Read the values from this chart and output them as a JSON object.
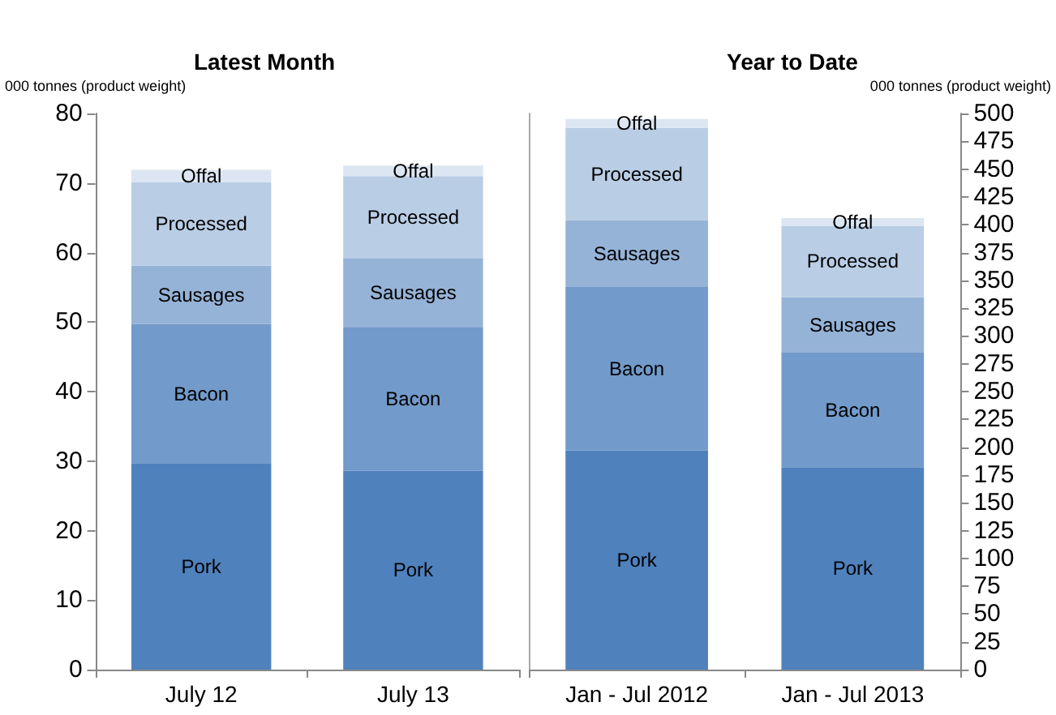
{
  "chart_data": [
    {
      "type": "bar",
      "title": "Latest Month",
      "ylabel": "000 tonnes (product weight)",
      "categories": [
        "July 12",
        "July 13"
      ],
      "stacked": true,
      "legend": false,
      "grid": false,
      "ylim": [
        0,
        80
      ],
      "yticks": [
        0,
        10,
        20,
        30,
        40,
        50,
        60,
        70,
        80
      ],
      "series": [
        {
          "name": "Pork",
          "color": "#4f81bd",
          "values": [
            29.7,
            28.6
          ]
        },
        {
          "name": "Bacon",
          "color": "#729aca",
          "values": [
            20.0,
            20.6
          ]
        },
        {
          "name": "Sausages",
          "color": "#95b3d7",
          "values": [
            8.4,
            10.0
          ]
        },
        {
          "name": "Processed",
          "color": "#b9cde5",
          "values": [
            12.0,
            11.8
          ]
        },
        {
          "name": "Offal",
          "color": "#dce6f2",
          "values": [
            1.8,
            1.5
          ]
        }
      ]
    },
    {
      "type": "bar",
      "title": "Year to Date",
      "ylabel": "000 tonnes (product weight)",
      "categories": [
        "Jan - Jul 2012",
        "Jan - Jul 2013"
      ],
      "stacked": true,
      "legend": false,
      "grid": false,
      "ylim": [
        0,
        500
      ],
      "yticks": [
        0,
        25,
        50,
        75,
        100,
        125,
        150,
        175,
        200,
        225,
        250,
        275,
        300,
        325,
        350,
        375,
        400,
        425,
        450,
        475,
        500
      ],
      "series": [
        {
          "name": "Pork",
          "color": "#4f81bd",
          "values": [
            197,
            182
          ]
        },
        {
          "name": "Bacon",
          "color": "#729aca",
          "values": [
            147,
            103
          ]
        },
        {
          "name": "Sausages",
          "color": "#95b3d7",
          "values": [
            60,
            50
          ]
        },
        {
          "name": "Processed",
          "color": "#b9cde5",
          "values": [
            83,
            64
          ]
        },
        {
          "name": "Offal",
          "color": "#dce6f2",
          "values": [
            8,
            7
          ]
        }
      ]
    }
  ]
}
